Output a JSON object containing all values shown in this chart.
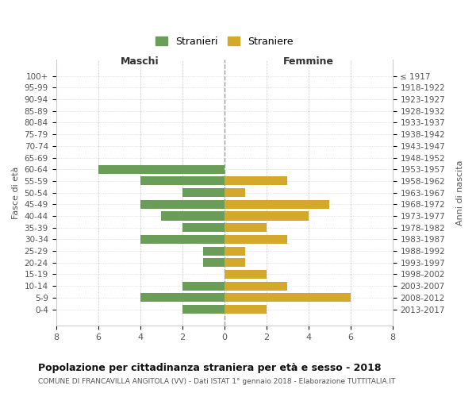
{
  "age_groups": [
    "100+",
    "95-99",
    "90-94",
    "85-89",
    "80-84",
    "75-79",
    "70-74",
    "65-69",
    "60-64",
    "55-59",
    "50-54",
    "45-49",
    "40-44",
    "35-39",
    "30-34",
    "25-29",
    "20-24",
    "15-19",
    "10-14",
    "5-9",
    "0-4"
  ],
  "birth_years": [
    "≤ 1917",
    "1918-1922",
    "1923-1927",
    "1928-1932",
    "1933-1937",
    "1938-1942",
    "1943-1947",
    "1948-1952",
    "1953-1957",
    "1958-1962",
    "1963-1967",
    "1968-1972",
    "1973-1977",
    "1978-1982",
    "1983-1987",
    "1988-1992",
    "1993-1997",
    "1998-2002",
    "2003-2007",
    "2008-2012",
    "2013-2017"
  ],
  "maschi": [
    0,
    0,
    0,
    0,
    0,
    0,
    0,
    0,
    6,
    4,
    2,
    4,
    3,
    2,
    4,
    1,
    1,
    0,
    2,
    4,
    2
  ],
  "femmine": [
    0,
    0,
    0,
    0,
    0,
    0,
    0,
    0,
    0,
    3,
    1,
    5,
    4,
    2,
    3,
    1,
    1,
    2,
    3,
    6,
    2
  ],
  "male_color": "#6a9e58",
  "female_color": "#d4a82a",
  "background_color": "#ffffff",
  "grid_color": "#cccccc",
  "title": "Popolazione per cittadinanza straniera per età e sesso - 2018",
  "subtitle": "COMUNE DI FRANCAVILLA ANGITOLA (VV) - Dati ISTAT 1° gennaio 2018 - Elaborazione TUTTITALIA.IT",
  "legend_male": "Stranieri",
  "legend_female": "Straniere",
  "xlim": 8,
  "xlabel_left": "Maschi",
  "xlabel_right": "Femmine",
  "ylabel_left": "Fasce di età",
  "ylabel_right": "Anni di nascita"
}
